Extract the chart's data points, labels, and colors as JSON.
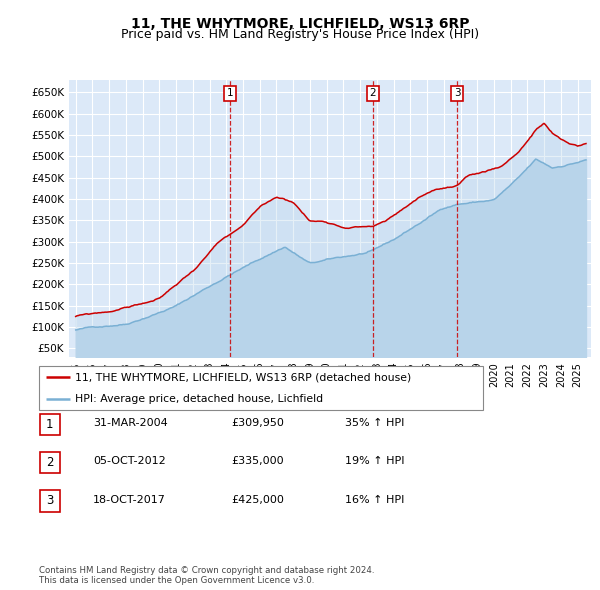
{
  "title": "11, THE WHYTMORE, LICHFIELD, WS13 6RP",
  "subtitle": "Price paid vs. HM Land Registry's House Price Index (HPI)",
  "ylabel_ticks": [
    "£650K",
    "£600K",
    "£550K",
    "£500K",
    "£450K",
    "£400K",
    "£350K",
    "£300K",
    "£250K",
    "£200K",
    "£150K",
    "£100K",
    "£50K"
  ],
  "ytick_vals": [
    650000,
    600000,
    550000,
    500000,
    450000,
    400000,
    350000,
    300000,
    250000,
    200000,
    150000,
    100000,
    50000
  ],
  "ylim": [
    30000,
    680000
  ],
  "xlim_start": 1994.6,
  "xlim_end": 2025.8,
  "bg_color": "#dce9f8",
  "grid_color": "#ffffff",
  "hpi_color": "#7ab0d4",
  "hpi_fill_color": "#b8d4ea",
  "price_color": "#cc0000",
  "dashed_line_color": "#cc0000",
  "sale_markers": [
    {
      "x": 2004.24,
      "label": "1"
    },
    {
      "x": 2012.76,
      "label": "2"
    },
    {
      "x": 2017.79,
      "label": "3"
    }
  ],
  "legend_line1": "11, THE WHYTMORE, LICHFIELD, WS13 6RP (detached house)",
  "legend_line2": "HPI: Average price, detached house, Lichfield",
  "table_rows": [
    {
      "num": "1",
      "date": "31-MAR-2004",
      "price": "£309,950",
      "change": "35% ↑ HPI"
    },
    {
      "num": "2",
      "date": "05-OCT-2012",
      "price": "£335,000",
      "change": "19% ↑ HPI"
    },
    {
      "num": "3",
      "date": "18-OCT-2017",
      "price": "£425,000",
      "change": "16% ↑ HPI"
    }
  ],
  "footer": "Contains HM Land Registry data © Crown copyright and database right 2024.\nThis data is licensed under the Open Government Licence v3.0.",
  "title_fontsize": 10,
  "subtitle_fontsize": 9
}
